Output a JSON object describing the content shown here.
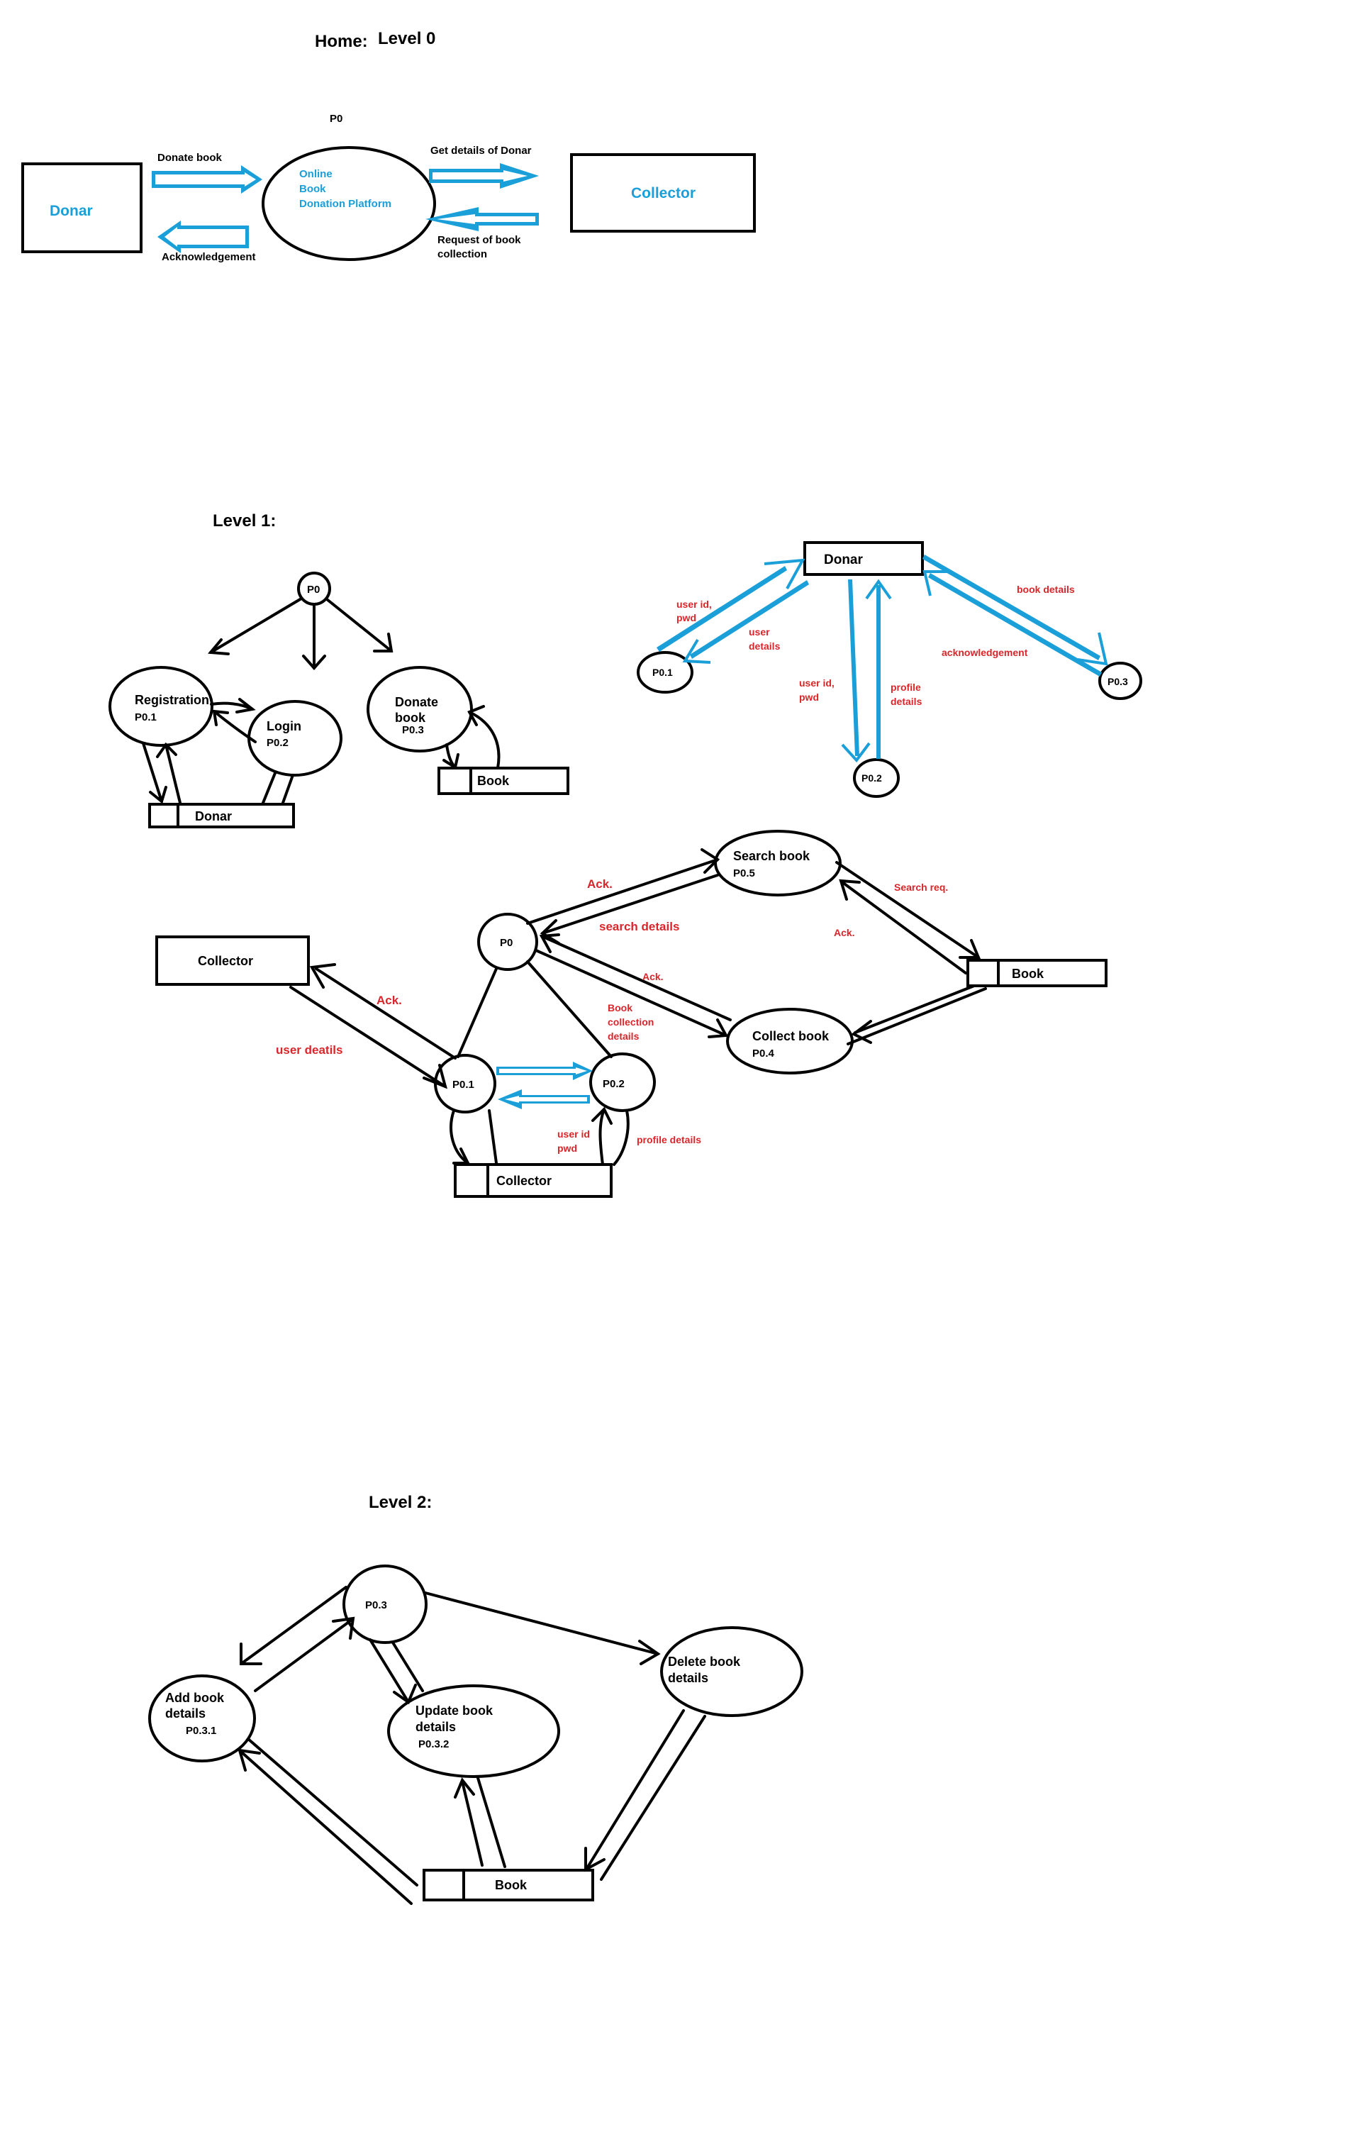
{
  "level0": {
    "title": "Home:",
    "level": "Level 0",
    "process_label": "P0",
    "process_name": [
      "Online",
      "Book",
      "Donation Platform"
    ],
    "entity_left": "Donar",
    "entity_right": "Collector",
    "flow_donate": "Donate book",
    "flow_ack": "Acknowledgement",
    "flow_get_details": "Get details of Donar",
    "flow_request": [
      "Request of book",
      "collection"
    ]
  },
  "level1": {
    "title": "Level 1:",
    "donar_section": {
      "p0": "P0",
      "registration": [
        "Registration",
        "P0.1"
      ],
      "login": [
        "Login",
        "P0.2"
      ],
      "donate": [
        "Donate",
        "book",
        "P0.3"
      ],
      "store_donar": "Donar",
      "store_book": "Book"
    },
    "donar_flows": {
      "entity": "Donar",
      "p01": "P0.1",
      "p02": "P0.2",
      "p03": "P0.3",
      "userid_pwd_left": [
        "user id,",
        "pwd"
      ],
      "user_details": [
        "user",
        "details"
      ],
      "userid_pwd_mid": [
        "user id,",
        "pwd"
      ],
      "profile_details": [
        "profile",
        "details"
      ],
      "book_details": "book details",
      "acknowledgement": "acknowledgement"
    },
    "collector_section": {
      "collector": "Collector",
      "p0": "P0",
      "p01": "P0.1",
      "p02": "P0.2",
      "search_book": [
        "Search book",
        "P0.5"
      ],
      "collect_book": [
        "Collect book",
        "P0.4"
      ],
      "store_book": "Book",
      "store_collector": "Collector",
      "ack_collector": "Ack.",
      "user_details": "user deatils",
      "ack_search": "Ack.",
      "search_details": "search details",
      "ack_collect": "Ack.",
      "book_collection": [
        "Book",
        "collection",
        "details"
      ],
      "search_req": "Search req.",
      "ack_book": "Ack.",
      "userid_pwd": [
        "user id",
        "pwd"
      ],
      "profile_details": "profile details"
    }
  },
  "level2": {
    "title": "Level 2:",
    "p03": "P0.3",
    "add": [
      "Add book",
      "details",
      "P0.3.1"
    ],
    "update": [
      "Update book",
      "details",
      "P0.3.2"
    ],
    "delete": [
      "Delete book",
      "details"
    ],
    "store_book": "Book"
  },
  "colors": {
    "accent_blue": "#1a9fd9",
    "flow_red": "#d9262b",
    "outline": "#000000"
  }
}
